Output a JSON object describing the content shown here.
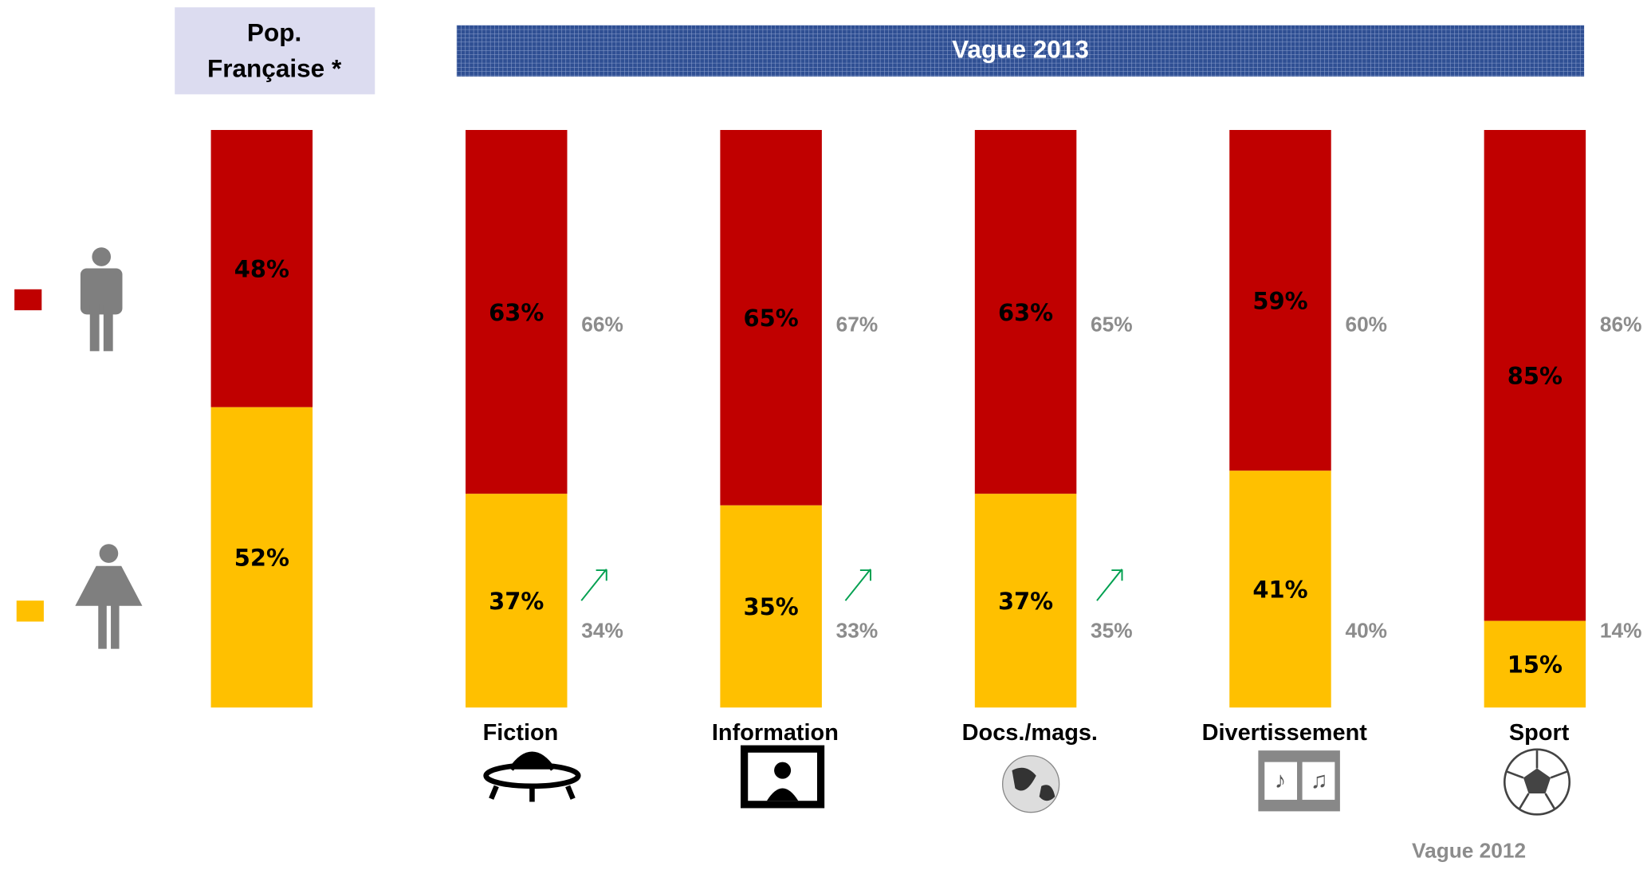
{
  "chart_data": {
    "type": "stacked_bar",
    "reference_label_lines": [
      "Pop.",
      "Française *"
    ],
    "wave_label": "Vague 2013",
    "comparison_label": "Vague 2012",
    "categories": [
      null,
      "Fiction",
      "Information",
      "Docs./mags.",
      "Divertissement",
      "Sport"
    ],
    "ylim": [
      0,
      100
    ],
    "series": [
      {
        "color": "#c00000",
        "values": [
          48,
          63,
          65,
          63,
          59,
          85
        ],
        "value_labels": [
          "48%",
          "63%",
          "65%",
          "63%",
          "59%",
          "85%"
        ],
        "previous_values": [
          null,
          66,
          67,
          65,
          60,
          86
        ],
        "previous_value_labels": [
          null,
          "66%",
          "67%",
          "65%",
          "60%",
          "86%"
        ]
      },
      {
        "color": "#ffc000",
        "values": [
          52,
          37,
          35,
          37,
          41,
          15
        ],
        "value_labels": [
          "52%",
          "37%",
          "35%",
          "37%",
          "41%",
          "15%"
        ],
        "previous_values": [
          null,
          34,
          33,
          35,
          40,
          14
        ],
        "previous_value_labels": [
          null,
          "34%",
          "33%",
          "35%",
          "40%",
          "14%"
        ]
      }
    ]
  }
}
